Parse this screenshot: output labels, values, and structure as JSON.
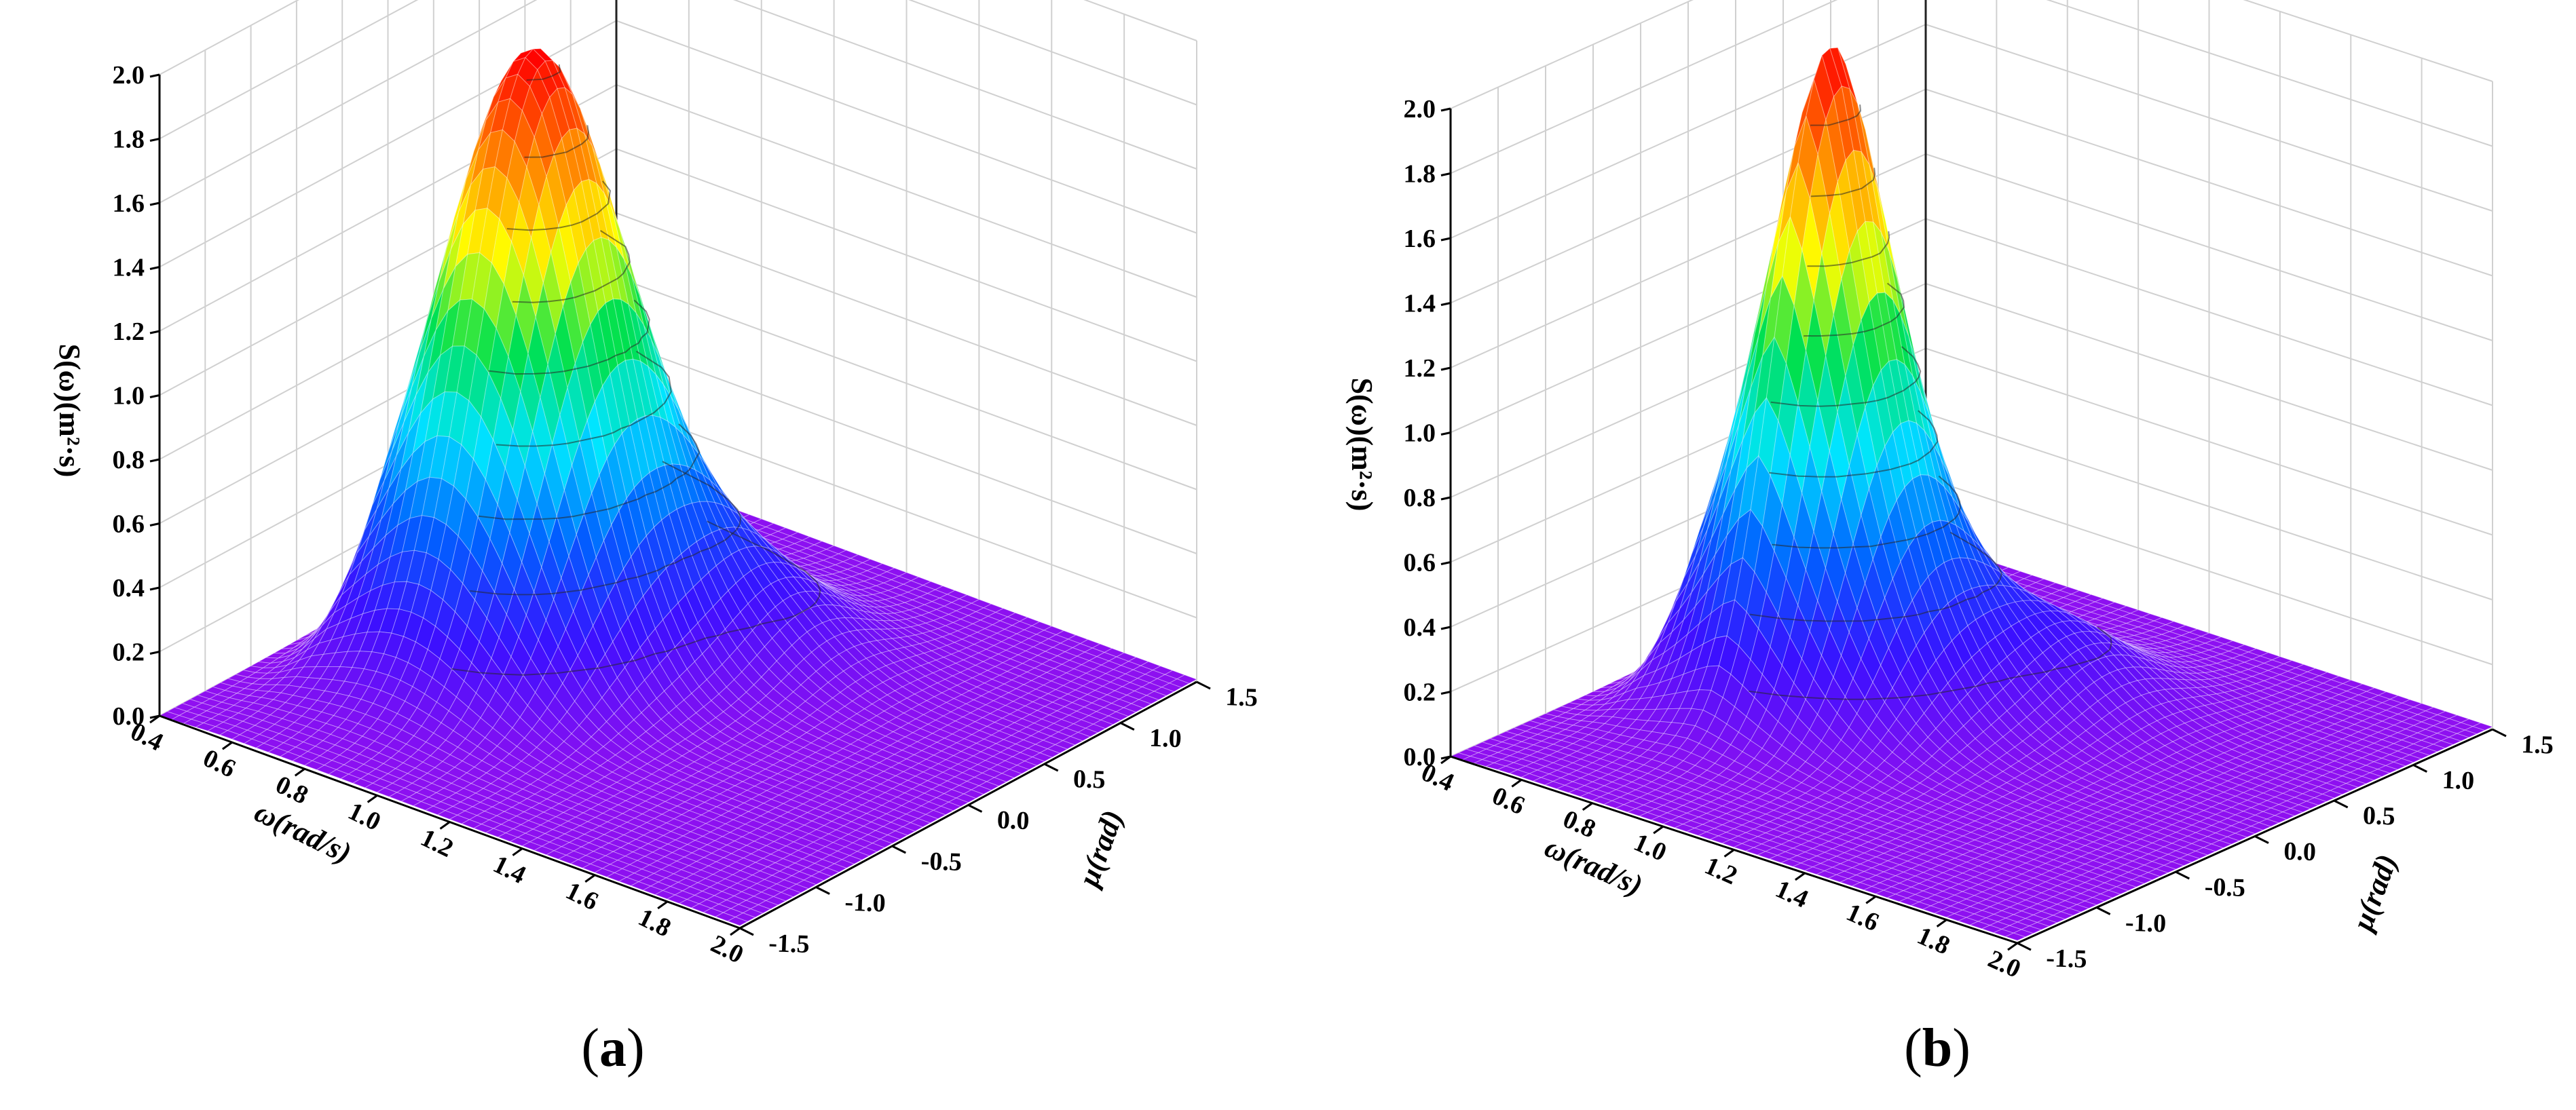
{
  "captions": {
    "a": "a",
    "b": "b"
  },
  "chart_data": [
    {
      "type": "surface3d",
      "panel": "a",
      "zlabel": "S(ω)(m²·s)",
      "xlabel": "ω(rad/s)",
      "ylabel": "μ(rad)",
      "x_ticks": [
        "0.4",
        "0.6",
        "0.8",
        "1.0",
        "1.2",
        "1.4",
        "1.6",
        "1.8",
        "2.0"
      ],
      "y_ticks": [
        "-1.5",
        "-1.0",
        "-0.5",
        "0.0",
        "0.5",
        "1.0",
        "1.5"
      ],
      "z_ticks": [
        "0.0",
        "0.2",
        "0.4",
        "0.6",
        "0.8",
        "1.0",
        "1.2",
        "1.4",
        "1.6",
        "1.8",
        "2.0"
      ],
      "xlim": [
        0.4,
        2.0
      ],
      "ylim": [
        -1.5,
        1.5
      ],
      "zlim": [
        0,
        2.0
      ],
      "peak": {
        "omega": 0.8,
        "mu": 0.0,
        "S": 1.85
      },
      "colormap": [
        "#9010f0",
        "#3a10ff",
        "#0060ff",
        "#00e5ff",
        "#00e050",
        "#ffff00",
        "#ff8000",
        "#ff0000"
      ]
    },
    {
      "type": "surface3d",
      "panel": "b",
      "zlabel": "S(ω)(m²·s)",
      "xlabel": "ω(rad/s)",
      "ylabel": "μ(rad)",
      "x_ticks": [
        "0.4",
        "0.6",
        "0.8",
        "1.0",
        "1.2",
        "1.4",
        "1.6",
        "1.8",
        "2.0"
      ],
      "y_ticks": [
        "-1.5",
        "-1.0",
        "-0.5",
        "0.0",
        "0.5",
        "1.0",
        "1.5"
      ],
      "z_ticks": [
        "0.0",
        "0.2",
        "0.4",
        "0.6",
        "0.8",
        "1.0",
        "1.2",
        "1.4",
        "1.6",
        "1.8",
        "2.0"
      ],
      "xlim": [
        0.4,
        2.0
      ],
      "ylim": [
        -1.5,
        1.5
      ],
      "zlim": [
        0,
        2.0
      ],
      "peak": {
        "omega": 0.8,
        "mu": 0.0,
        "S": 2.0
      },
      "colormap": [
        "#9010f0",
        "#3a10ff",
        "#0060ff",
        "#00e5ff",
        "#00e050",
        "#ffff00",
        "#ff8000",
        "#ff0000"
      ]
    }
  ]
}
